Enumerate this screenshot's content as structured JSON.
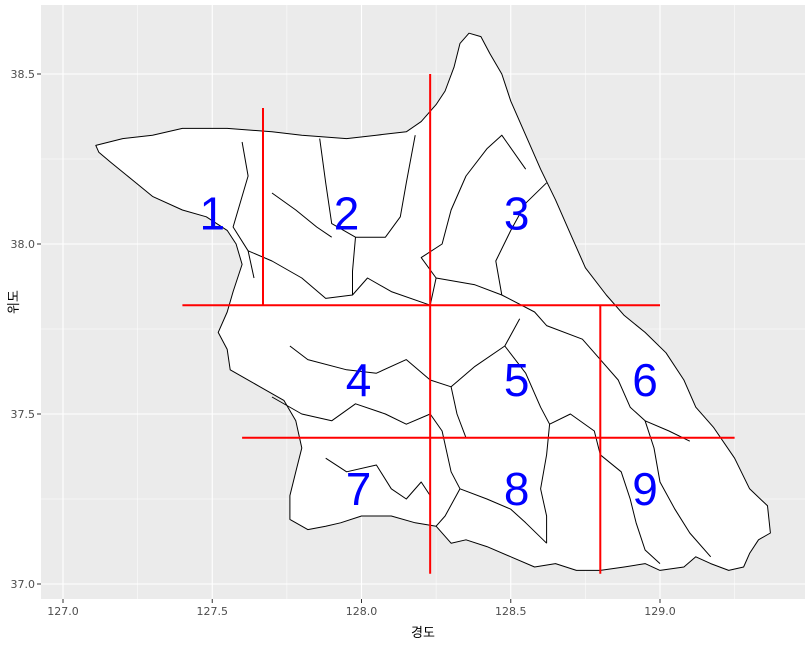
{
  "chart_data": {
    "type": "map",
    "xlabel": "경도",
    "ylabel": "위도",
    "xlim": [
      127.0,
      129.5
    ],
    "ylim": [
      37.0,
      38.65
    ],
    "xticks": [
      127.0,
      127.5,
      128.0,
      128.5,
      129.0
    ],
    "xtick_labels": [
      "127.0",
      "127.5",
      "128.0",
      "128.5",
      "129.0"
    ],
    "yticks": [
      37.0,
      37.5,
      38.0,
      38.5
    ],
    "ytick_labels": [
      "37.0",
      "37.5",
      "38.0",
      "38.5"
    ],
    "panel_background": "#ebebeb",
    "grid_color": "#ffffff",
    "region_fill": "#ffffff",
    "region_outline": "#000000",
    "divider_color": "#ff0000",
    "label_color": "#0000ff",
    "dividers": [
      {
        "x": [
          127.4,
          129.0
        ],
        "y": [
          37.82,
          37.82
        ]
      },
      {
        "x": [
          127.6,
          129.25
        ],
        "y": [
          37.43,
          37.43
        ]
      },
      {
        "x": [
          127.67,
          127.67
        ],
        "y": [
          37.82,
          38.4
        ]
      },
      {
        "x": [
          128.23,
          128.23
        ],
        "y": [
          37.03,
          38.5
        ]
      },
      {
        "x": [
          128.8,
          128.8
        ],
        "y": [
          37.03,
          37.82
        ]
      }
    ],
    "zone_labels": [
      {
        "text": "1",
        "lon": 127.5,
        "lat": 38.09
      },
      {
        "text": "2",
        "lon": 127.95,
        "lat": 38.09
      },
      {
        "text": "3",
        "lon": 128.52,
        "lat": 38.09
      },
      {
        "text": "4",
        "lon": 127.99,
        "lat": 37.6
      },
      {
        "text": "5",
        "lon": 128.52,
        "lat": 37.6
      },
      {
        "text": "6",
        "lon": 128.95,
        "lat": 37.6
      },
      {
        "text": "7",
        "lon": 127.99,
        "lat": 37.28
      },
      {
        "text": "8",
        "lon": 128.52,
        "lat": 37.28
      },
      {
        "text": "9",
        "lon": 128.95,
        "lat": 37.28
      }
    ],
    "outline": [
      [
        127.11,
        38.29
      ],
      [
        127.2,
        38.31
      ],
      [
        127.3,
        38.32
      ],
      [
        127.4,
        38.34
      ],
      [
        127.55,
        38.34
      ],
      [
        127.7,
        38.33
      ],
      [
        127.8,
        38.32
      ],
      [
        127.95,
        38.31
      ],
      [
        128.05,
        38.32
      ],
      [
        128.15,
        38.33
      ],
      [
        128.2,
        38.36
      ],
      [
        128.25,
        38.41
      ],
      [
        128.28,
        38.45
      ],
      [
        128.31,
        38.52
      ],
      [
        128.33,
        38.59
      ],
      [
        128.36,
        38.62
      ],
      [
        128.4,
        38.61
      ],
      [
        128.43,
        38.56
      ],
      [
        128.47,
        38.5
      ],
      [
        128.5,
        38.42
      ],
      [
        128.55,
        38.32
      ],
      [
        128.6,
        38.22
      ],
      [
        128.65,
        38.13
      ],
      [
        128.7,
        38.03
      ],
      [
        128.75,
        37.93
      ],
      [
        128.82,
        37.85
      ],
      [
        128.88,
        37.79
      ],
      [
        128.95,
        37.74
      ],
      [
        129.02,
        37.68
      ],
      [
        129.08,
        37.6
      ],
      [
        129.12,
        37.52
      ],
      [
        129.18,
        37.46
      ],
      [
        129.25,
        37.37
      ],
      [
        129.3,
        37.28
      ],
      [
        129.36,
        37.23
      ],
      [
        129.37,
        37.15
      ],
      [
        129.33,
        37.13
      ],
      [
        129.3,
        37.09
      ],
      [
        129.28,
        37.05
      ],
      [
        129.23,
        37.04
      ],
      [
        129.17,
        37.06
      ],
      [
        129.12,
        37.08
      ],
      [
        129.08,
        37.05
      ],
      [
        129.0,
        37.04
      ],
      [
        128.95,
        37.06
      ],
      [
        128.88,
        37.05
      ],
      [
        128.8,
        37.04
      ],
      [
        128.72,
        37.04
      ],
      [
        128.65,
        37.06
      ],
      [
        128.58,
        37.05
      ],
      [
        128.5,
        37.08
      ],
      [
        128.42,
        37.11
      ],
      [
        128.35,
        37.13
      ],
      [
        128.3,
        37.12
      ],
      [
        128.25,
        37.17
      ],
      [
        128.18,
        37.18
      ],
      [
        128.1,
        37.2
      ],
      [
        128.0,
        37.2
      ],
      [
        127.93,
        37.18
      ],
      [
        127.88,
        37.17
      ],
      [
        127.82,
        37.16
      ],
      [
        127.76,
        37.19
      ],
      [
        127.76,
        37.26
      ],
      [
        127.78,
        37.33
      ],
      [
        127.8,
        37.4
      ],
      [
        127.78,
        37.48
      ],
      [
        127.74,
        37.54
      ],
      [
        127.66,
        37.58
      ],
      [
        127.56,
        37.63
      ],
      [
        127.55,
        37.69
      ],
      [
        127.52,
        37.74
      ],
      [
        127.55,
        37.8
      ],
      [
        127.57,
        37.86
      ],
      [
        127.6,
        37.94
      ],
      [
        127.58,
        38.0
      ],
      [
        127.55,
        38.04
      ],
      [
        127.48,
        38.08
      ],
      [
        127.4,
        38.1
      ],
      [
        127.3,
        38.14
      ],
      [
        127.23,
        38.19
      ],
      [
        127.16,
        38.24
      ],
      [
        127.12,
        38.27
      ]
    ],
    "boundaries": [
      [
        [
          127.6,
          38.3
        ],
        [
          127.62,
          38.2
        ],
        [
          127.57,
          38.05
        ],
        [
          127.62,
          37.98
        ],
        [
          127.64,
          37.9
        ]
      ],
      [
        [
          127.86,
          38.31
        ],
        [
          127.88,
          38.18
        ],
        [
          127.9,
          38.06
        ],
        [
          127.98,
          38.02
        ],
        [
          128.08,
          38.02
        ],
        [
          128.13,
          38.08
        ],
        [
          128.15,
          38.18
        ],
        [
          128.18,
          38.32
        ]
      ],
      [
        [
          127.7,
          38.15
        ],
        [
          127.78,
          38.1
        ],
        [
          127.85,
          38.05
        ],
        [
          127.9,
          38.02
        ]
      ],
      [
        [
          127.62,
          37.98
        ],
        [
          127.7,
          37.95
        ],
        [
          127.8,
          37.9
        ],
        [
          127.88,
          37.84
        ],
        [
          127.97,
          37.85
        ],
        [
          128.02,
          37.9
        ],
        [
          128.1,
          37.86
        ],
        [
          128.23,
          37.82
        ]
      ],
      [
        [
          127.98,
          38.02
        ],
        [
          127.97,
          37.92
        ],
        [
          127.97,
          37.85
        ]
      ],
      [
        [
          128.23,
          37.82
        ],
        [
          128.25,
          37.9
        ],
        [
          128.2,
          37.96
        ],
        [
          128.27,
          38.0
        ],
        [
          128.3,
          38.1
        ],
        [
          128.35,
          38.2
        ],
        [
          128.42,
          38.28
        ],
        [
          128.47,
          38.32
        ],
        [
          128.55,
          38.22
        ]
      ],
      [
        [
          128.25,
          37.9
        ],
        [
          128.38,
          37.88
        ],
        [
          128.47,
          37.85
        ],
        [
          128.58,
          37.8
        ],
        [
          128.62,
          37.76
        ],
        [
          128.74,
          37.72
        ],
        [
          128.8,
          37.66
        ]
      ],
      [
        [
          128.47,
          37.85
        ],
        [
          128.45,
          37.95
        ],
        [
          128.5,
          38.04
        ],
        [
          128.55,
          38.12
        ],
        [
          128.62,
          38.18
        ]
      ],
      [
        [
          127.76,
          37.7
        ],
        [
          127.82,
          37.66
        ],
        [
          127.95,
          37.63
        ],
        [
          128.05,
          37.62
        ],
        [
          128.15,
          37.66
        ],
        [
          128.23,
          37.6
        ],
        [
          128.3,
          37.58
        ],
        [
          128.38,
          37.64
        ],
        [
          128.48,
          37.7
        ],
        [
          128.53,
          37.78
        ]
      ],
      [
        [
          127.7,
          37.55
        ],
        [
          127.8,
          37.5
        ],
        [
          127.9,
          37.48
        ],
        [
          127.98,
          37.53
        ],
        [
          128.08,
          37.5
        ],
        [
          128.15,
          37.47
        ],
        [
          128.23,
          37.5
        ],
        [
          128.27,
          37.45
        ],
        [
          128.3,
          37.33
        ],
        [
          128.33,
          37.28
        ],
        [
          128.42,
          37.25
        ],
        [
          128.5,
          37.22
        ],
        [
          128.55,
          37.18
        ],
        [
          128.62,
          37.12
        ]
      ],
      [
        [
          128.3,
          37.58
        ],
        [
          128.32,
          37.5
        ],
        [
          128.35,
          37.43
        ]
      ],
      [
        [
          128.48,
          37.7
        ],
        [
          128.55,
          37.62
        ],
        [
          128.6,
          37.52
        ],
        [
          128.63,
          37.47
        ],
        [
          128.7,
          37.5
        ],
        [
          128.78,
          37.45
        ],
        [
          128.8,
          37.38
        ]
      ],
      [
        [
          128.8,
          37.66
        ],
        [
          128.86,
          37.6
        ],
        [
          128.9,
          37.52
        ],
        [
          128.95,
          37.48
        ],
        [
          129.03,
          37.45
        ],
        [
          129.1,
          37.42
        ]
      ],
      [
        [
          128.8,
          37.38
        ],
        [
          128.87,
          37.33
        ],
        [
          128.9,
          37.25
        ],
        [
          128.92,
          37.18
        ],
        [
          128.95,
          37.1
        ],
        [
          129.0,
          37.06
        ]
      ],
      [
        [
          128.95,
          37.48
        ],
        [
          128.98,
          37.4
        ],
        [
          129.0,
          37.3
        ],
        [
          129.05,
          37.22
        ],
        [
          129.1,
          37.15
        ],
        [
          129.17,
          37.08
        ]
      ],
      [
        [
          128.33,
          37.28
        ],
        [
          128.28,
          37.2
        ],
        [
          128.25,
          37.17
        ]
      ],
      [
        [
          127.88,
          37.37
        ],
        [
          127.95,
          37.33
        ],
        [
          128.05,
          37.35
        ],
        [
          128.1,
          37.28
        ],
        [
          128.15,
          37.25
        ],
        [
          128.2,
          37.3
        ],
        [
          128.23,
          37.26
        ]
      ],
      [
        [
          128.63,
          37.47
        ],
        [
          128.62,
          37.38
        ],
        [
          128.6,
          37.28
        ],
        [
          128.62,
          37.2
        ],
        [
          128.62,
          37.12
        ]
      ]
    ]
  }
}
